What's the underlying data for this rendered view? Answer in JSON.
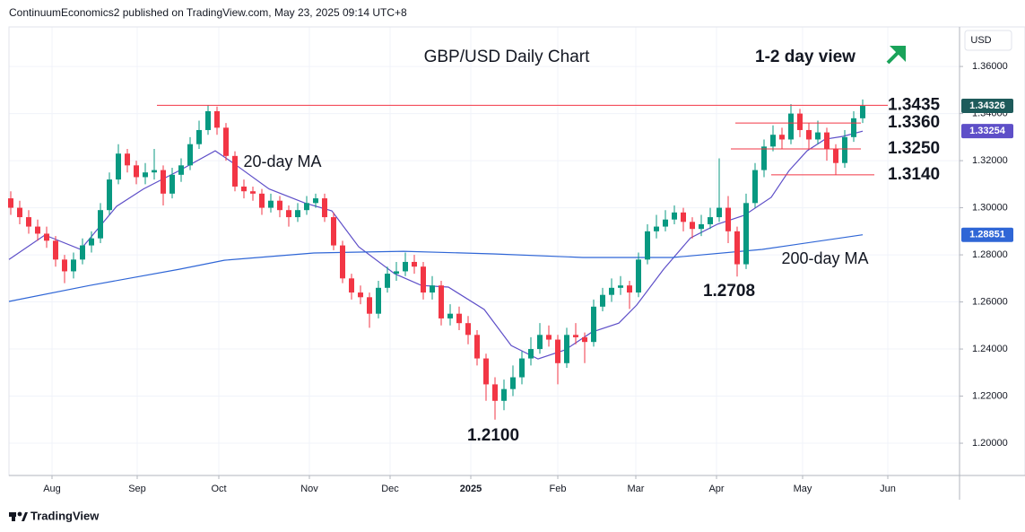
{
  "header": {
    "text": "ContinuumEconomics2 published on TradingView.com, May 23, 2025 09:14 UTC+8"
  },
  "footer": {
    "brand": "TradingView"
  },
  "chart_data": {
    "type": "candlestick",
    "title": "GBP/USD Daily Chart",
    "view": "1-2 day view",
    "y_axis_label": "USD",
    "grid": true,
    "xlim": [
      -0.2,
      105.8
    ],
    "xticks": [
      {
        "value": 4.6,
        "label": "Aug"
      },
      {
        "value": 14.1,
        "label": "Sep"
      },
      {
        "value": 23.2,
        "label": "Oct"
      },
      {
        "value": 33.3,
        "label": "Nov"
      },
      {
        "value": 42.3,
        "label": "Dec"
      },
      {
        "value": 51.3,
        "label": "2025"
      },
      {
        "value": 61,
        "label": "Feb"
      },
      {
        "value": 69.7,
        "label": "Mar"
      },
      {
        "value": 78.7,
        "label": "Apr"
      },
      {
        "value": 88.3,
        "label": "May"
      },
      {
        "value": 97.8,
        "label": "Jun"
      }
    ],
    "ylim": [
      1.1863,
      1.3768
    ],
    "yticks": [
      {
        "value": 1.2,
        "label": "1.20000"
      },
      {
        "value": 1.22,
        "label": "1.22000"
      },
      {
        "value": 1.24,
        "label": "1.24000"
      },
      {
        "value": 1.26,
        "label": "1.26000"
      },
      {
        "value": 1.28,
        "label": "1.28000"
      },
      {
        "value": 1.3,
        "label": "1.30000"
      },
      {
        "value": 1.32,
        "label": "1.32000"
      },
      {
        "value": 1.34,
        "label": "1.34000"
      },
      {
        "value": 1.36,
        "label": "1.36000"
      }
    ],
    "candles": {
      "up_color": "#089981",
      "down_color": "#f23645",
      "tag_color": "#1e5b5b",
      "open": [
        1.304,
        1.3,
        1.296,
        1.292,
        1.289,
        1.286,
        1.278,
        1.273,
        1.278,
        1.284,
        1.287,
        1.299,
        1.312,
        1.323,
        1.318,
        1.313,
        1.315,
        1.316,
        1.306,
        1.314,
        1.318,
        1.327,
        1.333,
        1.341,
        1.334,
        1.322,
        1.309,
        1.307,
        1.306,
        1.3,
        1.303,
        1.299,
        1.296,
        1.299,
        1.302,
        1.304,
        1.296,
        1.284,
        1.27,
        1.264,
        1.262,
        1.255,
        1.266,
        1.272,
        1.273,
        1.277,
        1.275,
        1.264,
        1.267,
        1.253,
        1.255,
        1.251,
        1.246,
        1.236,
        1.225,
        1.218,
        1.223,
        1.228,
        1.236,
        1.24,
        1.246,
        1.244,
        1.234,
        1.246,
        1.245,
        1.243,
        1.258,
        1.263,
        1.266,
        1.267,
        1.264,
        1.278,
        1.29,
        1.292,
        1.295,
        1.298,
        1.294,
        1.291,
        1.293,
        1.296,
        1.3,
        1.29,
        1.276,
        1.302,
        1.316,
        1.326,
        1.331,
        1.329,
        1.34,
        1.333,
        1.329,
        1.332,
        1.325,
        1.319,
        1.33,
        1.338
      ],
      "high": [
        1.307,
        1.303,
        1.299,
        1.295,
        1.292,
        1.288,
        1.28,
        1.281,
        1.287,
        1.29,
        1.302,
        1.315,
        1.327,
        1.325,
        1.32,
        1.319,
        1.325,
        1.318,
        1.317,
        1.321,
        1.33,
        1.337,
        1.3435,
        1.343,
        1.336,
        1.324,
        1.312,
        1.309,
        1.308,
        1.306,
        1.305,
        1.301,
        1.302,
        1.305,
        1.306,
        1.306,
        1.298,
        1.286,
        1.272,
        1.267,
        1.264,
        1.269,
        1.275,
        1.277,
        1.281,
        1.28,
        1.277,
        1.271,
        1.269,
        1.259,
        1.258,
        1.254,
        1.248,
        1.238,
        1.228,
        1.227,
        1.233,
        1.239,
        1.245,
        1.251,
        1.25,
        1.246,
        1.249,
        1.251,
        1.247,
        1.261,
        1.266,
        1.27,
        1.271,
        1.269,
        1.281,
        1.293,
        1.297,
        1.299,
        1.301,
        1.3,
        1.296,
        1.297,
        1.3,
        1.321,
        1.305,
        1.292,
        1.306,
        1.319,
        1.329,
        1.335,
        1.334,
        1.344,
        1.342,
        1.336,
        1.337,
        1.334,
        1.327,
        1.333,
        1.341,
        1.346
      ],
      "low": [
        1.297,
        1.293,
        1.289,
        1.286,
        1.283,
        1.275,
        1.268,
        1.27,
        1.276,
        1.281,
        1.285,
        1.297,
        1.31,
        1.315,
        1.31,
        1.31,
        1.312,
        1.301,
        1.304,
        1.311,
        1.316,
        1.325,
        1.331,
        1.331,
        1.32,
        1.307,
        1.304,
        1.303,
        1.297,
        1.298,
        1.296,
        1.292,
        1.294,
        1.297,
        1.3,
        1.294,
        1.282,
        1.268,
        1.261,
        1.259,
        1.249,
        1.253,
        1.264,
        1.269,
        1.271,
        1.272,
        1.261,
        1.261,
        1.25,
        1.25,
        1.248,
        1.242,
        1.233,
        1.218,
        1.21,
        1.214,
        1.22,
        1.225,
        1.233,
        1.238,
        1.241,
        1.225,
        1.232,
        1.242,
        1.234,
        1.241,
        1.256,
        1.26,
        1.263,
        1.257,
        1.262,
        1.276,
        1.287,
        1.29,
        1.293,
        1.29,
        1.287,
        1.288,
        1.291,
        1.294,
        1.285,
        1.2708,
        1.274,
        1.3,
        1.313,
        1.324,
        1.325,
        1.327,
        1.33,
        1.325,
        1.327,
        1.32,
        1.314,
        1.317,
        1.328,
        1.336
      ],
      "close": [
        1.3,
        1.296,
        1.292,
        1.289,
        1.286,
        1.278,
        1.273,
        1.278,
        1.284,
        1.287,
        1.299,
        1.312,
        1.323,
        1.318,
        1.313,
        1.315,
        1.316,
        1.306,
        1.314,
        1.318,
        1.327,
        1.333,
        1.341,
        1.334,
        1.322,
        1.309,
        1.307,
        1.306,
        1.3,
        1.303,
        1.299,
        1.296,
        1.299,
        1.302,
        1.304,
        1.296,
        1.284,
        1.27,
        1.264,
        1.262,
        1.255,
        1.266,
        1.272,
        1.273,
        1.277,
        1.275,
        1.264,
        1.267,
        1.253,
        1.255,
        1.251,
        1.246,
        1.236,
        1.225,
        1.218,
        1.223,
        1.228,
        1.236,
        1.24,
        1.246,
        1.244,
        1.234,
        1.246,
        1.245,
        1.243,
        1.258,
        1.263,
        1.266,
        1.267,
        1.264,
        1.278,
        1.29,
        1.292,
        1.295,
        1.298,
        1.294,
        1.291,
        1.293,
        1.296,
        1.3,
        1.29,
        1.276,
        1.302,
        1.316,
        1.326,
        1.331,
        1.329,
        1.34,
        1.333,
        1.329,
        1.332,
        1.325,
        1.319,
        1.33,
        1.338,
        1.34326
      ]
    },
    "lines": [
      {
        "name": "20-day MA",
        "color": "#5e4fc8",
        "x": [
          -0.2,
          3.8,
          7.8,
          11.8,
          14.8,
          18.8,
          22.8,
          24.8,
          28.8,
          32.8,
          35.8,
          38.8,
          42.8,
          45.8,
          48.8,
          52.8,
          55.8,
          58.8,
          61.8,
          64.8,
          67.8,
          69.8,
          72.8,
          75.8,
          78.8,
          81.8,
          84.8,
          86.8,
          88.8,
          90.8,
          92.8,
          95
        ],
        "values": [
          1.278,
          1.2884,
          1.2823,
          1.3006,
          1.308,
          1.3158,
          1.3242,
          1.319,
          1.308,
          1.302,
          1.2987,
          1.2834,
          1.272,
          1.267,
          1.2663,
          1.2568,
          1.2415,
          1.2358,
          1.2396,
          1.2472,
          1.251,
          1.2587,
          1.2739,
          1.2872,
          1.293,
          1.2968,
          1.3044,
          1.3158,
          1.3242,
          1.3291,
          1.3303,
          1.33254
        ]
      },
      {
        "name": "200-day MA",
        "color": "#2f66d6",
        "x": [
          -0.2,
          8.8,
          18.8,
          23.8,
          33.8,
          43.8,
          53.8,
          63.8,
          73.8,
          83.8,
          95
        ],
        "values": [
          1.2602,
          1.267,
          1.2739,
          1.2777,
          1.2808,
          1.2815,
          1.2804,
          1.2789,
          1.2789,
          1.2823,
          1.28851
        ]
      }
    ],
    "levels": {
      "color": "#f23645",
      "items": [
        1.3435,
        {
          "value": 1.336,
          "label": "1.3360"
        },
        {
          "value": 1.325,
          "label": "1.3250"
        },
        {
          "value": 1.314,
          "label": "1.3140"
        }
      ]
    },
    "lows": [
      1.2708,
      {
        "value": 1.21,
        "label": "1.2100"
      }
    ]
  }
}
